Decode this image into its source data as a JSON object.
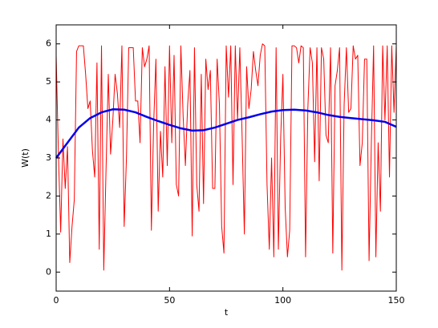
{
  "chart_data": {
    "type": "line",
    "xlabel": "t",
    "ylabel": "W(t)",
    "xlim": [
      0,
      150
    ],
    "ylim": [
      -0.5,
      6.5
    ],
    "xticks": [
      0,
      50,
      100,
      150
    ],
    "yticks": [
      0,
      1,
      2,
      3,
      4,
      5,
      6
    ],
    "series": [
      {
        "color": "#ff0000",
        "width": 1,
        "x": [
          0,
          1,
          2,
          3,
          4,
          5,
          6,
          7,
          8,
          9,
          10,
          11,
          12,
          13,
          14,
          15,
          16,
          17,
          18,
          19,
          20,
          21,
          22,
          23,
          24,
          25,
          26,
          27,
          28,
          29,
          30,
          31,
          32,
          33,
          34,
          35,
          36,
          37,
          38,
          39,
          40,
          41,
          42,
          43,
          44,
          45,
          46,
          47,
          48,
          49,
          50,
          51,
          52,
          53,
          54,
          55,
          56,
          57,
          58,
          59,
          60,
          61,
          62,
          63,
          64,
          65,
          66,
          67,
          68,
          69,
          70,
          71,
          72,
          73,
          74,
          75,
          76,
          77,
          78,
          79,
          80,
          81,
          82,
          83,
          84,
          85,
          86,
          87,
          88,
          89,
          90,
          91,
          92,
          93,
          94,
          95,
          96,
          97,
          98,
          99,
          100,
          101,
          102,
          103,
          104,
          105,
          106,
          107,
          108,
          109,
          110,
          111,
          112,
          113,
          114,
          115,
          116,
          117,
          118,
          119,
          120,
          121,
          122,
          123,
          124,
          125,
          126,
          127,
          128,
          129,
          130,
          131,
          132,
          133,
          134,
          135,
          136,
          137,
          138,
          139,
          140,
          141,
          142,
          143,
          144,
          145,
          146,
          147,
          148,
          149,
          150
        ],
        "values": [
          5.7,
          3.1,
          1.05,
          3.5,
          2.2,
          3.3,
          0.25,
          1.2,
          1.9,
          5.8,
          5.95,
          5.95,
          5.95,
          5.2,
          4.3,
          4.5,
          3.2,
          2.5,
          5.5,
          0.6,
          5.95,
          0.05,
          2.7,
          5.2,
          3.1,
          4.0,
          5.2,
          4.7,
          3.8,
          5.95,
          1.2,
          3.0,
          5.9,
          5.9,
          5.9,
          4.5,
          4.5,
          3.4,
          5.9,
          5.4,
          5.6,
          5.95,
          1.1,
          3.9,
          5.6,
          1.6,
          3.7,
          2.5,
          5.4,
          2.8,
          5.95,
          3.4,
          5.7,
          2.3,
          2.0,
          5.95,
          4.1,
          2.8,
          4.4,
          5.3,
          0.95,
          5.9,
          2.3,
          1.6,
          5.2,
          1.8,
          5.6,
          4.8,
          5.3,
          2.2,
          2.2,
          5.6,
          4.4,
          1.2,
          0.5,
          5.95,
          4.6,
          5.95,
          2.3,
          5.95,
          4.0,
          5.9,
          3.6,
          1.0,
          5.4,
          4.3,
          4.8,
          5.8,
          5.3,
          4.9,
          5.7,
          6.0,
          5.95,
          2.3,
          0.6,
          3.0,
          0.4,
          5.9,
          0.6,
          3.5,
          5.2,
          1.7,
          0.4,
          1.1,
          5.95,
          5.95,
          5.9,
          5.5,
          5.95,
          5.9,
          0.4,
          4.3,
          5.9,
          5.5,
          2.9,
          5.9,
          2.4,
          5.9,
          5.6,
          3.6,
          3.4,
          5.9,
          0.5,
          4.9,
          5.3,
          5.9,
          0.05,
          4.4,
          5.9,
          4.2,
          4.3,
          5.95,
          5.6,
          5.7,
          2.8,
          3.4,
          5.6,
          5.6,
          0.3,
          3.4,
          5.95,
          0.4,
          3.4,
          1.6,
          5.95,
          4.0,
          5.95,
          2.5,
          5.95,
          4.2,
          5.95
        ]
      },
      {
        "color": "#0000ee",
        "width": 2.5,
        "x": [
          0,
          5,
          10,
          15,
          20,
          25,
          30,
          35,
          40,
          45,
          50,
          55,
          60,
          65,
          70,
          75,
          80,
          85,
          90,
          95,
          100,
          105,
          110,
          115,
          120,
          125,
          130,
          135,
          140,
          145,
          150
        ],
        "values": [
          3.0,
          3.4,
          3.8,
          4.05,
          4.2,
          4.28,
          4.27,
          4.2,
          4.08,
          3.97,
          3.87,
          3.78,
          3.72,
          3.73,
          3.8,
          3.9,
          4.0,
          4.07,
          4.15,
          4.22,
          4.26,
          4.27,
          4.25,
          4.2,
          4.13,
          4.08,
          4.05,
          4.02,
          3.99,
          3.95,
          3.82
        ]
      }
    ]
  }
}
